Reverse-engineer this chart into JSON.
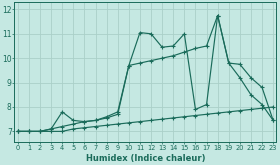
{
  "xlabel": "Humidex (Indice chaleur)",
  "bg_color": "#c5e8e2",
  "grid_color": "#aad0c8",
  "line_color": "#1a6b5a",
  "xlim": [
    -0.3,
    23.3
  ],
  "ylim": [
    6.55,
    12.3
  ],
  "xticks": [
    0,
    1,
    2,
    3,
    4,
    5,
    6,
    7,
    8,
    9,
    10,
    11,
    12,
    13,
    14,
    15,
    16,
    17,
    18,
    19,
    20,
    21,
    22,
    23
  ],
  "yticks": [
    7,
    8,
    9,
    10,
    11,
    12
  ],
  "line1_y": [
    7.0,
    7.0,
    7.0,
    7.0,
    7.0,
    7.1,
    7.15,
    7.2,
    7.25,
    7.3,
    7.35,
    7.4,
    7.45,
    7.5,
    7.55,
    7.6,
    7.65,
    7.7,
    7.75,
    7.8,
    7.85,
    7.9,
    7.95,
    8.0
  ],
  "line2_y": [
    7.0,
    7.0,
    7.0,
    7.1,
    7.2,
    7.3,
    7.4,
    7.45,
    7.55,
    7.7,
    9.7,
    9.8,
    9.9,
    10.0,
    10.1,
    10.25,
    10.4,
    10.5,
    11.75,
    9.8,
    9.75,
    9.2,
    8.8,
    7.45
  ],
  "line3_y": [
    7.0,
    7.0,
    7.0,
    7.1,
    7.8,
    7.45,
    7.4,
    7.45,
    7.6,
    7.8,
    9.7,
    11.05,
    11.0,
    10.45,
    10.5,
    11.0,
    7.9,
    8.1,
    11.75,
    9.8,
    9.2,
    8.5,
    8.1,
    7.45
  ]
}
